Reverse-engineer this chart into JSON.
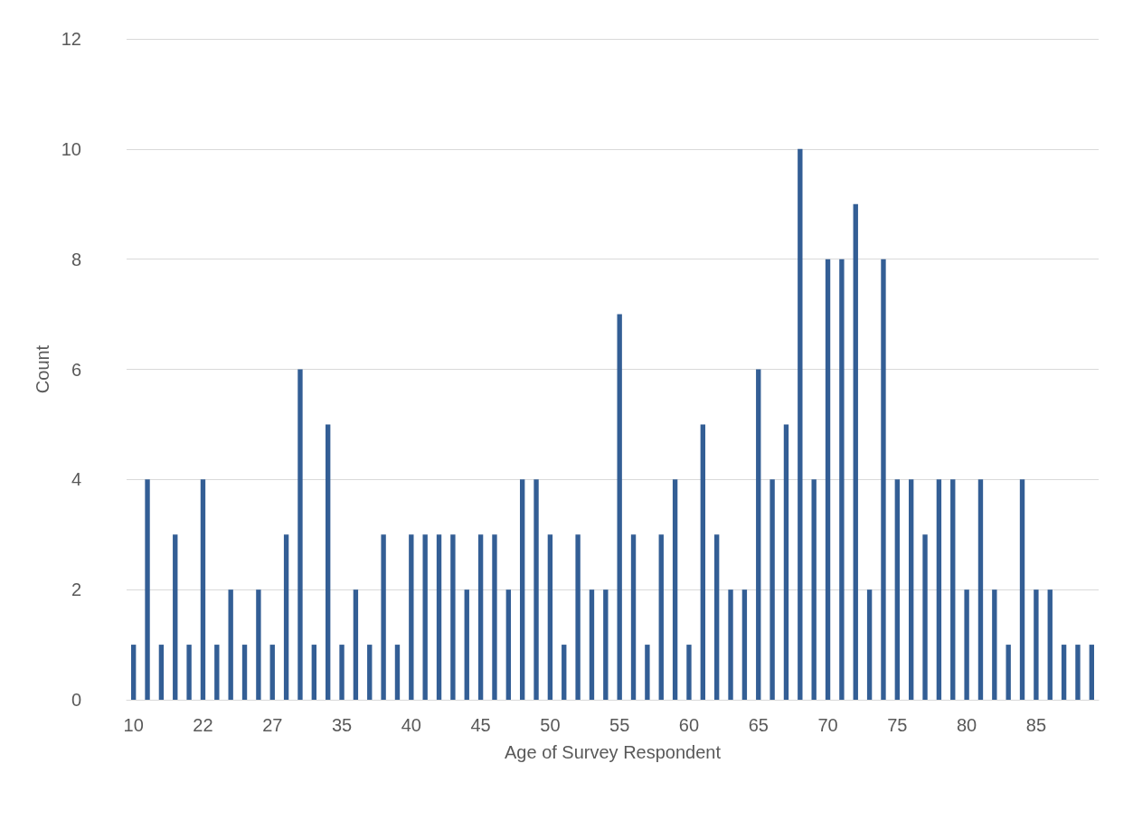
{
  "chart_data": {
    "type": "bar",
    "xlabel": "Age of Survey Respondent",
    "ylabel": "Count",
    "categories": [
      "10",
      null,
      null,
      null,
      null,
      "22",
      null,
      null,
      null,
      null,
      "27",
      null,
      null,
      null,
      null,
      "35",
      null,
      null,
      null,
      null,
      "40",
      null,
      null,
      null,
      null,
      "45",
      null,
      null,
      null,
      null,
      "50",
      null,
      null,
      null,
      null,
      "55",
      null,
      null,
      null,
      null,
      "60",
      null,
      null,
      null,
      null,
      "65",
      null,
      null,
      null,
      null,
      "70",
      null,
      null,
      null,
      null,
      "75",
      null,
      null,
      null,
      null,
      "80",
      null,
      null,
      null,
      null,
      "85",
      null,
      null,
      null,
      null
    ],
    "values": [
      1,
      4,
      1,
      3,
      1,
      4,
      1,
      2,
      1,
      2,
      1,
      3,
      6,
      1,
      5,
      1,
      2,
      1,
      3,
      1,
      3,
      3,
      3,
      3,
      2,
      3,
      3,
      2,
      4,
      4,
      3,
      1,
      3,
      2,
      2,
      7,
      3,
      1,
      3,
      4,
      1,
      5,
      3,
      2,
      2,
      6,
      4,
      5,
      10,
      4,
      8,
      8,
      9,
      2,
      8,
      4,
      4,
      3,
      4,
      4,
      2,
      4,
      2,
      1,
      4,
      2,
      2,
      1,
      1,
      1
    ],
    "color": "#335e95",
    "ylim": [
      0,
      12
    ],
    "yticks": [
      0,
      2,
      4,
      6,
      8,
      10,
      12
    ],
    "grid": "y"
  }
}
